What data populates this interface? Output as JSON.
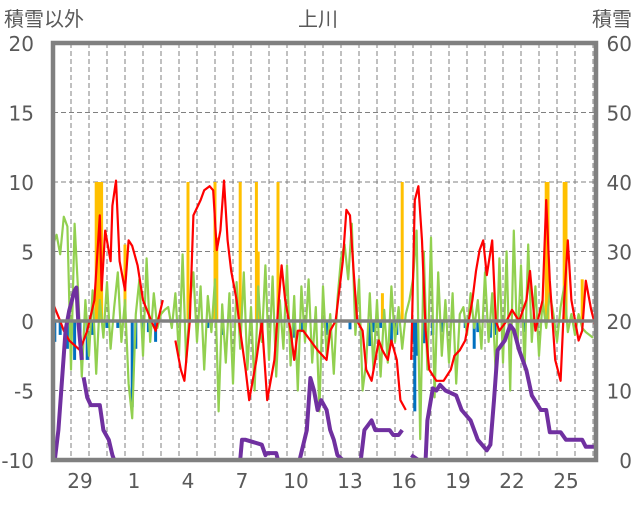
{
  "chart_data": {
    "type": "line",
    "title": "上川",
    "left_axis_label": "積雪以外",
    "right_axis_label": "積雪",
    "left_ylim": [
      -10,
      20
    ],
    "left_ticks": [
      "-10",
      "-5",
      "0",
      "5",
      "10",
      "15",
      "20"
    ],
    "right_ylim": [
      0,
      60
    ],
    "right_ticks": [
      "0",
      "10",
      "20",
      "30",
      "40",
      "50",
      "60"
    ],
    "x_range_days": [
      0,
      30.2
    ],
    "x_tick_labels": [
      {
        "day": 1.5,
        "label": "29"
      },
      {
        "day": 4.5,
        "label": "1"
      },
      {
        "day": 7.5,
        "label": "4"
      },
      {
        "day": 10.5,
        "label": "7"
      },
      {
        "day": 13.5,
        "label": "10"
      },
      {
        "day": 16.5,
        "label": "13"
      },
      {
        "day": 19.5,
        "label": "16"
      },
      {
        "day": 22.5,
        "label": "19"
      },
      {
        "day": 25.5,
        "label": "22"
      },
      {
        "day": 28.5,
        "label": "25"
      }
    ],
    "grid": true,
    "colors": {
      "temperature": "#ff0000",
      "green": "#92d050",
      "snow": "#7030a0",
      "orange": "#ffc000",
      "blue": "#0070c0",
      "axis": "#808080"
    },
    "series": [
      {
        "name": "temperature",
        "axis": "left",
        "points": [
          [
            0.05,
            1.1
          ],
          [
            0.4,
            0.0
          ],
          [
            0.6,
            -0.7
          ],
          [
            0.9,
            -1.4
          ],
          [
            1.5,
            -2.1
          ],
          [
            1.9,
            -0.7
          ],
          [
            2.3,
            1.5
          ],
          [
            2.6,
            7.6
          ],
          [
            2.7,
            2.2
          ],
          [
            2.9,
            6.5
          ],
          [
            3.2,
            4.3
          ],
          [
            3.3,
            8.3
          ],
          [
            3.5,
            10.1
          ],
          [
            3.7,
            4.3
          ],
          [
            4.0,
            2.2
          ],
          [
            4.2,
            5.8
          ],
          [
            4.4,
            5.4
          ],
          [
            4.7,
            4.0
          ],
          [
            5.0,
            1.5
          ],
          [
            5.4,
            0.2
          ],
          [
            5.7,
            -0.7
          ],
          [
            6.1,
            1.5
          ],
          null,
          [
            6.8,
            -1.4
          ],
          [
            7.1,
            -3.5
          ],
          [
            7.3,
            -4.3
          ],
          [
            7.6,
            0.0
          ],
          [
            7.8,
            7.6
          ],
          [
            8.2,
            8.7
          ],
          [
            8.4,
            9.4
          ],
          [
            8.7,
            9.7
          ],
          [
            8.9,
            9.4
          ],
          [
            9.1,
            5.1
          ],
          [
            9.3,
            6.5
          ],
          [
            9.5,
            10.1
          ],
          [
            9.7,
            5.8
          ],
          [
            9.9,
            3.6
          ],
          [
            10.2,
            1.5
          ],
          [
            10.4,
            -0.7
          ],
          [
            10.7,
            -3.5
          ],
          [
            10.9,
            -5.7
          ],
          [
            11.3,
            -2.8
          ],
          [
            11.6,
            0.0
          ],
          [
            11.9,
            -5.7
          ],
          [
            12.3,
            -2.8
          ],
          [
            12.5,
            0.8
          ],
          [
            12.7,
            4.0
          ],
          [
            12.9,
            1.5
          ],
          [
            13.2,
            -0.7
          ],
          [
            13.4,
            -2.8
          ],
          [
            13.6,
            -0.7
          ],
          [
            13.9,
            -0.7
          ],
          [
            14.3,
            -1.4
          ],
          [
            14.7,
            -2.1
          ],
          [
            15.2,
            -2.8
          ],
          [
            15.4,
            -0.7
          ],
          [
            15.7,
            0.0
          ],
          [
            16.1,
            4.3
          ],
          [
            16.3,
            8.0
          ],
          [
            16.5,
            7.6
          ],
          [
            16.7,
            3.6
          ],
          [
            16.9,
            0.0
          ],
          [
            17.2,
            -0.7
          ],
          [
            17.4,
            -3.5
          ],
          [
            17.7,
            -4.3
          ],
          [
            18.1,
            -1.4
          ],
          [
            18.3,
            -2.1
          ],
          [
            18.6,
            -2.8
          ],
          [
            18.8,
            -1.4
          ],
          [
            19.1,
            -2.8
          ],
          [
            19.3,
            -5.7
          ],
          [
            19.6,
            -6.4
          ],
          null,
          [
            19.9,
            -2.8
          ],
          [
            20.1,
            8.7
          ],
          [
            20.3,
            9.7
          ],
          [
            20.5,
            5.8
          ],
          [
            20.7,
            -0.7
          ],
          [
            20.9,
            -3.5
          ],
          [
            21.3,
            -4.3
          ],
          [
            21.7,
            -4.3
          ],
          [
            22.1,
            -3.5
          ],
          [
            22.3,
            -2.5
          ],
          [
            22.6,
            -2.1
          ],
          [
            22.9,
            -1.4
          ],
          [
            23.3,
            1.5
          ],
          [
            23.5,
            3.6
          ],
          [
            23.7,
            5.1
          ],
          [
            23.9,
            5.8
          ],
          [
            24.1,
            3.3
          ],
          [
            24.4,
            5.8
          ],
          [
            24.6,
            0.0
          ],
          [
            24.8,
            -0.7
          ],
          [
            25.2,
            0.0
          ],
          [
            25.5,
            0.8
          ],
          [
            25.9,
            0.0
          ],
          [
            26.3,
            1.5
          ],
          [
            26.5,
            3.6
          ],
          [
            26.8,
            -0.7
          ],
          [
            27.2,
            1.5
          ],
          [
            27.4,
            8.7
          ],
          [
            27.6,
            2.9
          ],
          [
            27.9,
            -2.8
          ],
          [
            28.2,
            -4.3
          ],
          [
            28.4,
            1.5
          ],
          [
            28.6,
            5.8
          ],
          [
            28.8,
            1.5
          ],
          [
            29.2,
            -1.4
          ],
          [
            29.4,
            -0.7
          ],
          [
            29.6,
            2.9
          ],
          [
            29.9,
            0.8
          ],
          [
            30.2,
            -0.7
          ]
        ]
      },
      {
        "name": "green",
        "axis": "left",
        "start_day": 0,
        "step_days": 0.2,
        "values": [
          5.5,
          6.2,
          4.8,
          7.5,
          6.8,
          -3.5,
          7.0,
          2.0,
          -4.0,
          1.5,
          -2.5,
          2.2,
          -3.8,
          1.5,
          -1.2,
          2.8,
          -2.0,
          1.0,
          3.5,
          -1.5,
          1.5,
          -4.5,
          -7.0,
          0.5,
          3.0,
          -2.5,
          4.5,
          -1.5,
          2.0,
          -0.5,
          0.5,
          0.8,
          1.0,
          -0.5,
          2.0,
          -2.5,
          4.8,
          -3.0,
          1.2,
          3.5,
          -1.5,
          2.5,
          -3.5,
          1.8,
          -0.8,
          3.0,
          -6.5,
          1.2,
          -3.0,
          2.0,
          -4.5,
          2.8,
          -2.0,
          3.5,
          -3.5,
          1.0,
          -5.0,
          2.5,
          -1.5,
          4.0,
          -2.8,
          3.2,
          -4.0,
          1.5,
          -2.0,
          4.0,
          -3.2,
          1.8,
          -5.0,
          2.5,
          -1.5,
          3.0,
          -3.0,
          1.0,
          -6.5,
          2.5,
          -2.5,
          0.5,
          -3.8,
          1.5,
          4.5,
          5.5,
          3.0,
          7.0,
          -1.0,
          3.0,
          -5.0,
          -3.0,
          2.0,
          -3.5,
          1.5,
          -4.0,
          0.8,
          -3.0,
          2.5,
          -1.5,
          1.0,
          -2.0,
          0.5,
          1.5,
          3.0,
          6.5,
          -8.5,
          5.0,
          -3.5,
          6.0,
          -5.5,
          3.5,
          -2.5,
          1.5,
          -3.0,
          2.0,
          -4.5,
          0.5,
          1.0,
          -1.0,
          2.0,
          -0.5,
          1.5,
          -2.0,
          3.5,
          -1.5,
          2.0,
          -4.0,
          4.5,
          -3.0,
          5.0,
          -5.0,
          6.5,
          -2.0,
          4.0,
          -3.5,
          5.5,
          -1.5,
          2.5,
          -2.5,
          1.5,
          -0.5,
          2.0,
          0.5,
          -1.5,
          1.0,
          2.5,
          -0.8,
          0.5,
          -1.0,
          0.5,
          -0.5,
          -0.8,
          -1.0,
          -1.2
        ]
      },
      {
        "name": "snow_depth",
        "axis": "right",
        "points": [
          [
            0.1,
            0
          ],
          [
            0.3,
            4.3
          ],
          [
            0.5,
            11.5
          ],
          [
            0.7,
            18.7
          ],
          [
            0.9,
            21.5
          ],
          [
            1.2,
            24.4
          ],
          [
            1.3,
            24.8
          ],
          [
            1.4,
            20.1
          ],
          [
            1.6,
            14.4
          ],
          null,
          [
            1.7,
            11.9
          ],
          [
            1.9,
            9.0
          ],
          [
            2.1,
            7.9
          ],
          [
            2.6,
            7.9
          ],
          [
            2.8,
            4.3
          ],
          [
            3.1,
            2.9
          ],
          [
            3.3,
            0.7
          ],
          [
            3.4,
            0
          ],
          [
            10.4,
            0
          ],
          [
            10.5,
            2.9
          ],
          [
            10.7,
            2.9
          ],
          [
            11.6,
            2.2
          ],
          [
            11.8,
            0.7
          ],
          [
            11.9,
            1.0
          ],
          [
            12.4,
            1.0
          ],
          [
            12.5,
            0
          ],
          [
            13.7,
            0
          ],
          [
            14.1,
            4.3
          ],
          [
            14.3,
            11.8
          ],
          [
            14.5,
            10.0
          ],
          [
            14.7,
            7.2
          ],
          [
            14.9,
            8.6
          ],
          [
            15.2,
            7.2
          ],
          [
            15.4,
            4.3
          ],
          [
            15.6,
            2.9
          ],
          [
            15.8,
            0.7
          ],
          [
            16.1,
            0
          ],
          [
            17.1,
            0
          ],
          [
            17.3,
            4.3
          ],
          [
            17.5,
            5.0
          ],
          [
            17.7,
            5.7
          ],
          [
            17.9,
            4.3
          ],
          [
            18.7,
            4.3
          ],
          [
            18.9,
            3.6
          ],
          [
            19.2,
            3.6
          ],
          [
            19.4,
            4.3
          ],
          null,
          [
            19.9,
            0.7
          ],
          [
            20.3,
            0
          ],
          [
            20.7,
            0
          ],
          [
            20.8,
            5.7
          ],
          [
            21.1,
            10.3
          ],
          [
            21.3,
            10.0
          ],
          [
            21.5,
            10.8
          ],
          [
            21.8,
            10.0
          ],
          [
            22.4,
            9.3
          ],
          [
            22.7,
            7.2
          ],
          [
            23.2,
            5.7
          ],
          [
            23.6,
            2.9
          ],
          [
            24.1,
            1.4
          ],
          [
            24.3,
            2.2
          ],
          [
            24.5,
            8.6
          ],
          [
            24.7,
            15.8
          ],
          [
            25.1,
            17.2
          ],
          [
            25.4,
            19.4
          ],
          [
            25.6,
            18.7
          ],
          [
            25.9,
            15.8
          ],
          [
            26.3,
            12.9
          ],
          [
            26.6,
            9.3
          ],
          [
            27.1,
            7.2
          ],
          [
            27.4,
            7.2
          ],
          [
            27.6,
            4.0
          ],
          [
            28.2,
            4.0
          ],
          [
            28.5,
            2.9
          ],
          [
            29.4,
            2.9
          ],
          [
            29.6,
            1.9
          ],
          [
            30.2,
            1.9
          ]
        ]
      },
      {
        "name": "orange_bars",
        "axis": "left",
        "points": [
          [
            2.4,
            10
          ],
          [
            2.5,
            10
          ],
          [
            2.6,
            10
          ],
          [
            2.7,
            10
          ],
          [
            4.0,
            5.5
          ],
          [
            7.5,
            10
          ],
          [
            9.0,
            10
          ],
          [
            9.1,
            6
          ],
          [
            10.4,
            10
          ],
          [
            11.3,
            10
          ],
          [
            11.4,
            5
          ],
          [
            12.5,
            10
          ],
          [
            18.3,
            2
          ],
          [
            19.4,
            10
          ],
          [
            27.4,
            10
          ],
          [
            27.5,
            10
          ],
          [
            28.4,
            10
          ],
          [
            28.5,
            10
          ],
          [
            29.4,
            3
          ]
        ]
      },
      {
        "name": "blue_bars",
        "axis": "left",
        "points": [
          [
            0.1,
            -1.5
          ],
          [
            0.4,
            -1.0
          ],
          [
            0.8,
            -2.0
          ],
          [
            1.2,
            -2.8
          ],
          [
            1.5,
            -1.5
          ],
          [
            1.9,
            -2.8
          ],
          [
            2.2,
            -1.0
          ],
          [
            3.0,
            -0.5
          ],
          [
            3.6,
            -0.5
          ],
          [
            4.4,
            -6.2
          ],
          [
            4.6,
            -2.0
          ],
          [
            5.0,
            -1.5
          ],
          [
            5.3,
            -0.8
          ],
          [
            5.7,
            -1.5
          ],
          [
            8.6,
            -0.5
          ],
          [
            9.4,
            -1.0
          ],
          [
            13.4,
            -1.2
          ],
          [
            13.8,
            -0.8
          ],
          [
            15.2,
            -1.0
          ],
          [
            16.5,
            -0.6
          ],
          [
            17.6,
            -1.8
          ],
          [
            17.8,
            -0.8
          ],
          [
            18.2,
            -0.5
          ],
          [
            18.8,
            -1.5
          ],
          [
            19.1,
            -1.0
          ],
          [
            20.0,
            -1.5
          ],
          [
            20.1,
            -6.5
          ],
          [
            20.2,
            -2.5
          ],
          [
            20.6,
            -1.6
          ],
          [
            21.1,
            -1.0
          ],
          [
            21.6,
            -0.8
          ],
          [
            22.9,
            -0.5
          ],
          [
            23.4,
            -2.0
          ],
          [
            23.6,
            -0.8
          ],
          [
            24.3,
            -1.2
          ],
          [
            24.6,
            -1.0
          ],
          [
            26.2,
            -0.8
          ]
        ]
      }
    ]
  }
}
